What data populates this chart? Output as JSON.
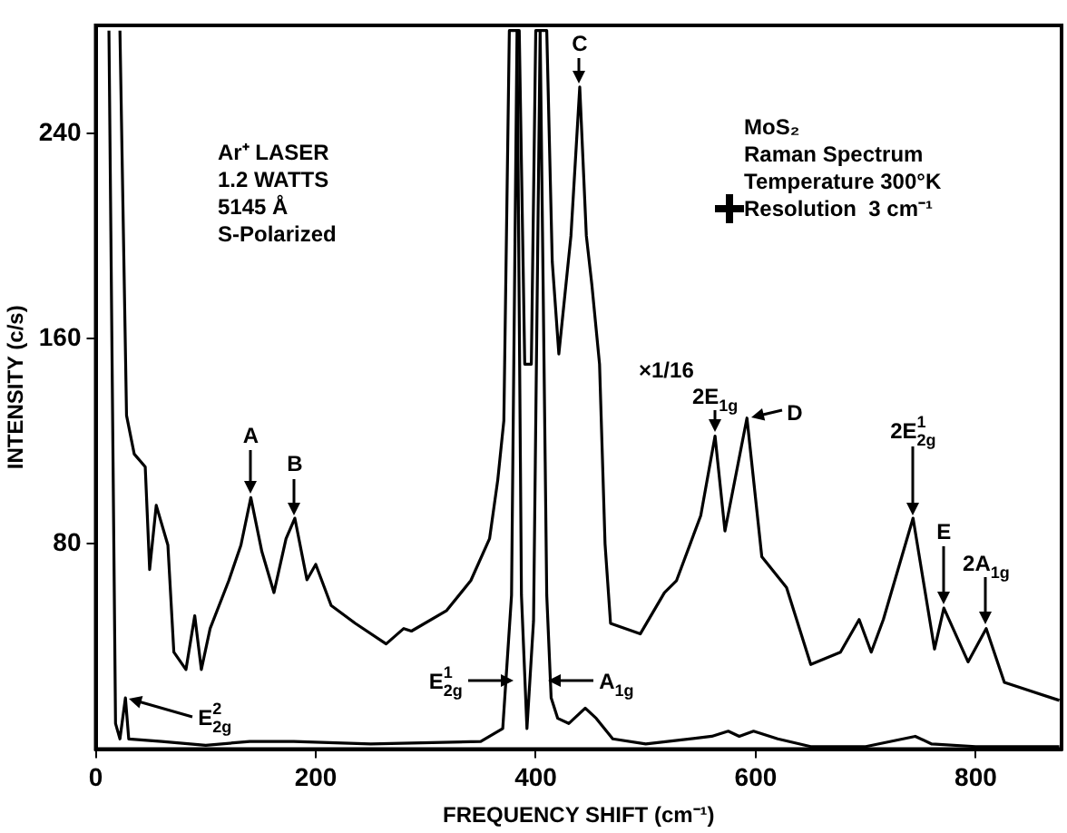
{
  "chart_data": {
    "type": "line",
    "xlabel": "FREQUENCY SHIFT (cm⁻¹)",
    "ylabel": "INTENSITY (c/s)",
    "xlim": [
      0,
      878
    ],
    "ylim": [
      0,
      282
    ],
    "xticks": [
      0,
      200,
      400,
      600,
      800
    ],
    "yticks": [
      80,
      160,
      240
    ],
    "grid": false,
    "legend": false,
    "marker": "none",
    "line_style": "solid",
    "series": [
      {
        "color": "#000000",
        "x": [
          22,
          28,
          35,
          45,
          49,
          55,
          65.6,
          71,
          82,
          90,
          96,
          104,
          121,
          132,
          141,
          151,
          162,
          173,
          181,
          192,
          200,
          214,
          236,
          264,
          280,
          287,
          319,
          341,
          358,
          365.5,
          371,
          376,
          385,
          390,
          396,
          400,
          410,
          415,
          421,
          432,
          440,
          446,
          451,
          458,
          463,
          468,
          495,
          517,
          528,
          550,
          563,
          572,
          592,
          605.5,
          628,
          650,
          677,
          694,
          705,
          716,
          743,
          762.5,
          771,
          793,
          809.5,
          826,
          876
        ],
        "values": [
          280,
          130,
          115,
          110,
          70,
          95,
          79.5,
          37.8,
          31,
          52,
          31,
          47,
          65.7,
          79.5,
          98,
          77,
          61,
          82,
          90,
          66,
          72,
          56,
          49,
          41,
          47,
          46,
          54,
          65.7,
          82,
          105,
          128,
          280,
          280,
          150,
          150,
          280,
          280,
          190,
          154,
          200,
          258,
          200,
          181,
          150,
          80,
          49,
          44.9,
          61,
          65.7,
          91,
          122,
          85,
          129,
          75,
          63,
          33,
          37.8,
          50.5,
          37.8,
          50.5,
          90,
          39,
          55,
          34,
          47,
          26,
          19
        ]
      },
      {
        "color": "#000000",
        "x": [
          12,
          18,
          22,
          27,
          30,
          60,
          100,
          140,
          180,
          250,
          350,
          370,
          378,
          383,
          387,
          392,
          398,
          404,
          410,
          414,
          420,
          430,
          445,
          455,
          470,
          500,
          560,
          575,
          585,
          598,
          620,
          650,
          700,
          745,
          760,
          800,
          876
        ],
        "values": [
          280,
          10,
          4,
          20,
          4,
          3,
          1.5,
          3,
          3,
          2,
          3,
          8,
          60,
          280,
          60,
          8,
          50,
          280,
          60,
          20,
          12,
          10,
          16,
          12,
          4,
          2,
          5,
          7,
          5,
          7,
          4,
          1,
          1,
          5,
          2,
          1,
          1
        ]
      }
    ],
    "annotations": [
      "Ar⁺ LASER",
      "1.2 WATTS",
      "5145 Å",
      "S-Polarized",
      "MoS₂",
      "Raman Spectrum",
      "Temperature 300°K",
      "Resolution  3 cm⁻¹",
      "×1/16",
      {
        "text": "A",
        "x": 141,
        "y": 98
      },
      {
        "text": "B",
        "x": 181,
        "y": 90
      },
      {
        "text": "C",
        "x": 440,
        "y": 258
      },
      {
        "text": "D",
        "x": 592,
        "y": 129
      },
      {
        "text": "2E$_{1g}$",
        "x": 563,
        "y": 122
      },
      {
        "text": "2E$^{1}$$_{2g}$",
        "x": 743,
        "y": 90
      },
      {
        "text": "E",
        "x": 771,
        "y": 55
      },
      {
        "text": "2A$_{1g}$",
        "x": 809.5,
        "y": 47
      },
      {
        "text": "E$_{2g}$$^{2}$",
        "x": 27,
        "y": 20
      },
      {
        "text": "E$^{1}$$_{2g}$",
        "x": 383,
        "y": 27
      },
      {
        "text": "A$_{1g}$",
        "x": 408,
        "y": 27
      }
    ]
  }
}
